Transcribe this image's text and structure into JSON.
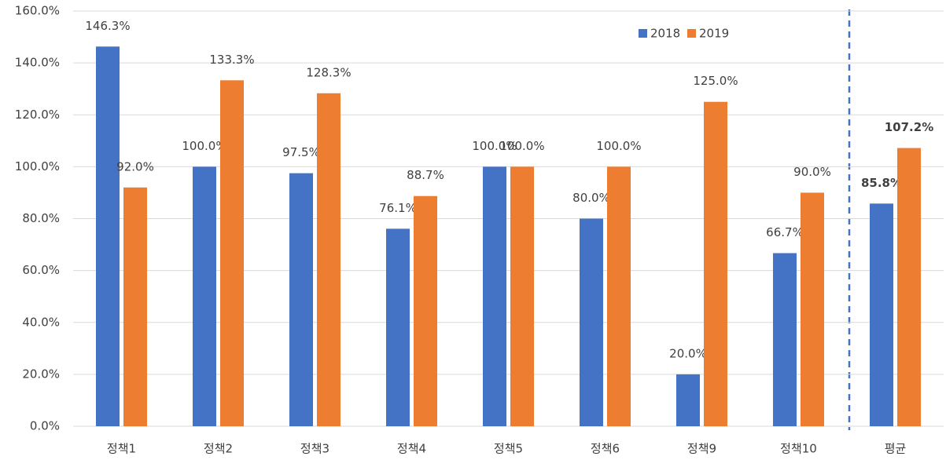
{
  "chart_data": {
    "type": "bar",
    "categories": [
      "정책1",
      "정책2",
      "정책3",
      "정책4",
      "정책5",
      "정책6",
      "정책9",
      "정책10",
      "평균"
    ],
    "series": [
      {
        "name": "2018",
        "color": "#4472c4",
        "values": [
          146.3,
          100.0,
          97.5,
          76.1,
          100.0,
          80.0,
          20.0,
          66.7,
          85.8
        ],
        "value_labels": [
          "146.3%",
          "100.0%",
          "97.5%",
          "76.1%",
          "100.0%",
          "80.0%",
          "20.0%",
          "66.7%",
          "85.8%"
        ]
      },
      {
        "name": "2019",
        "color": "#ed7d31",
        "values": [
          92.0,
          133.3,
          128.3,
          88.7,
          100.0,
          100.0,
          125.0,
          90.0,
          107.2
        ],
        "value_labels": [
          "92.0%",
          "133.3%",
          "128.3%",
          "88.7%",
          "100.0%",
          "100.0%",
          "125.0%",
          "90.0%",
          "107.2%"
        ]
      }
    ],
    "ylim": [
      0,
      160
    ],
    "yticks": [
      {
        "value": 0,
        "label": "0.0%"
      },
      {
        "value": 20,
        "label": "20.0%"
      },
      {
        "value": 40,
        "label": "40.0%"
      },
      {
        "value": 60,
        "label": "60.0%"
      },
      {
        "value": 80,
        "label": "80.0%"
      },
      {
        "value": 100,
        "label": "100.0%"
      },
      {
        "value": 120,
        "label": "120.0%"
      },
      {
        "value": 140,
        "label": "140.0%"
      },
      {
        "value": 160,
        "label": "160.0%"
      }
    ],
    "grid": true,
    "legend": "top-right"
  }
}
